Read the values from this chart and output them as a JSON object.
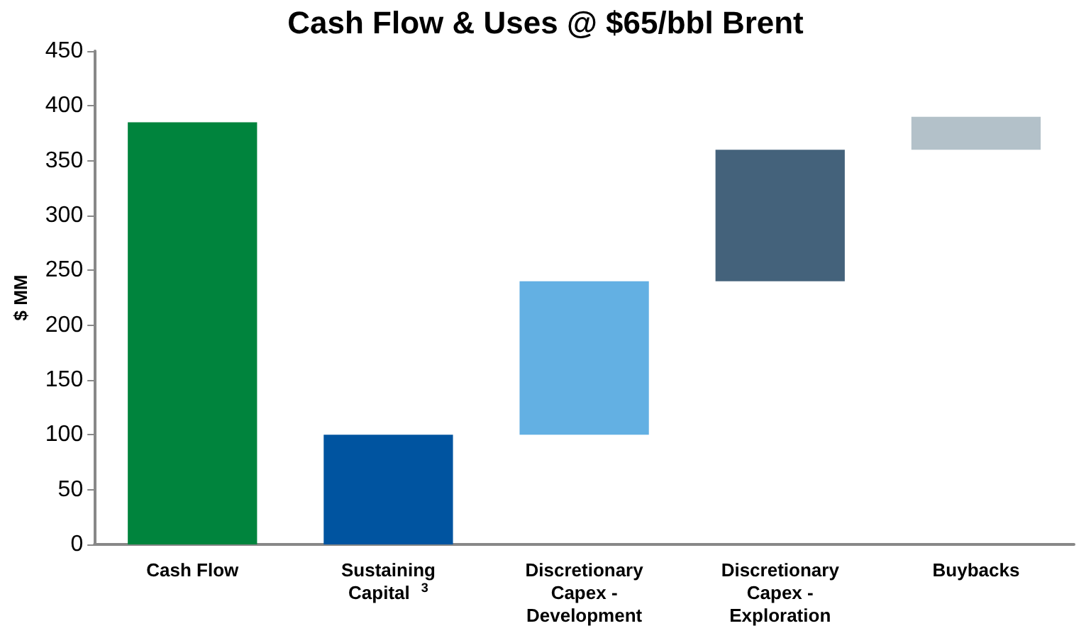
{
  "chart_data": {
    "type": "bar",
    "title": "Cash Flow & Uses @ $65/bbl Brent",
    "ylabel": "$ MM",
    "categories": [
      "Cash Flow",
      "Sustaining Capital$^{3}$",
      "Discretionary Capex - Development",
      "Discretionary Capex - Exploration",
      "Buybacks"
    ],
    "values": [
      385,
      100,
      140,
      120,
      30
    ],
    "base": [
      0,
      0,
      100,
      240,
      360
    ],
    "colors": [
      "#00843d",
      "#0054a0",
      "#63b0e3",
      "#44627b",
      "#b3c1c9"
    ],
    "ylim": [
      0,
      450
    ],
    "yticks": [
      0,
      50,
      100,
      150,
      200,
      250,
      300,
      350,
      400,
      450
    ],
    "grid": false
  }
}
